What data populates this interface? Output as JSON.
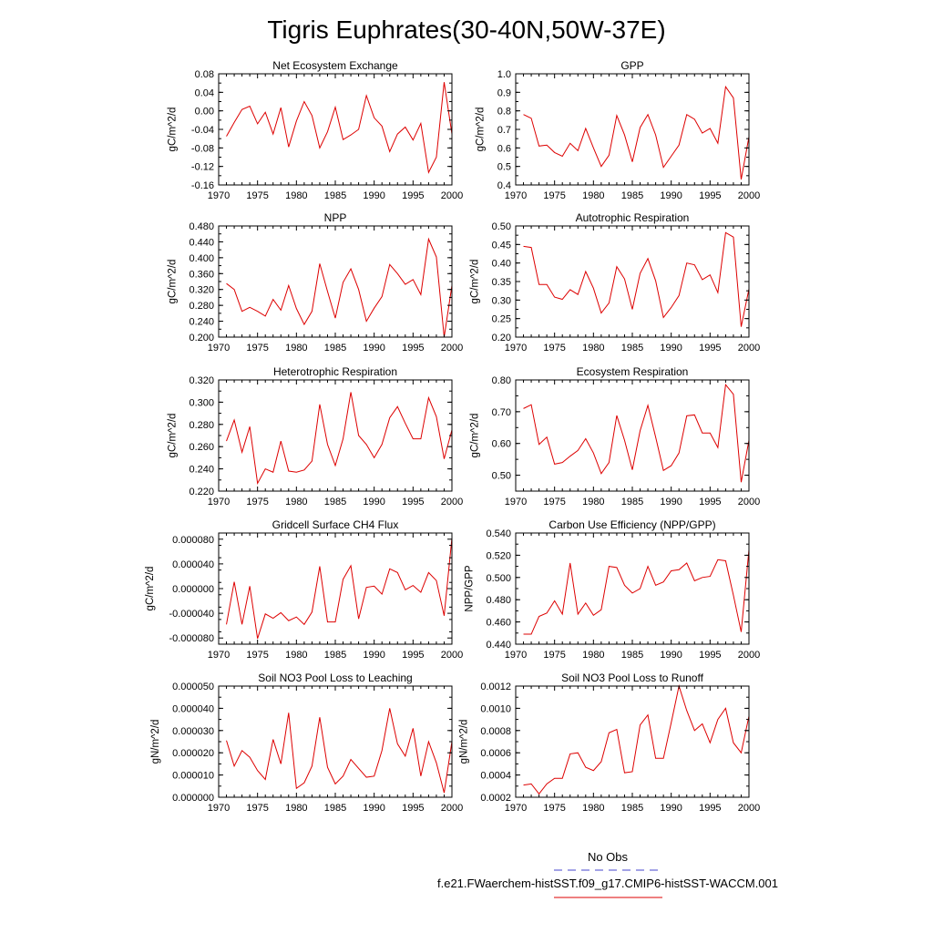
{
  "figure": {
    "title": "Tigris Euphrates(30-40N,50W-37E)"
  },
  "legend": {
    "entries": [
      {
        "label": "No Obs",
        "color": "#4444cc",
        "dash": "dashed"
      },
      {
        "label": "f.e21.FWaerchem-histSST.f09_g17.CMIP6-histSST-WACCM.001",
        "color": "#dd0000",
        "dash": "solid"
      }
    ]
  },
  "chart_data": [
    {
      "type": "line",
      "title": "Net Ecosystem Exchange",
      "xlabel": "",
      "ylabel": "gC/m^2/d",
      "xlim": [
        1970,
        2000
      ],
      "ylim": [
        -0.16,
        0.08
      ],
      "xticks": [
        "1970",
        "1975",
        "1980",
        "1985",
        "1990",
        "1995",
        "2000"
      ],
      "yticks": [
        "-0.16",
        "-0.12",
        "-0.08",
        "-0.04",
        "0.00",
        "0.04",
        "0.08"
      ],
      "series": [
        {
          "color": "#dd0000",
          "x": [
            1971,
            1972,
            1973,
            1974,
            1975,
            1976,
            1977,
            1978,
            1979,
            1980,
            1981,
            1982,
            1983,
            1984,
            1985,
            1986,
            1987,
            1988,
            1989,
            1990,
            1991,
            1992,
            1993,
            1994,
            1995,
            1996,
            1997,
            1998,
            1999,
            2000
          ],
          "y": [
            -0.055,
            -0.025,
            0.003,
            0.01,
            -0.028,
            -0.003,
            -0.05,
            0.007,
            -0.078,
            -0.022,
            0.02,
            -0.01,
            -0.08,
            -0.045,
            0.008,
            -0.062,
            -0.052,
            -0.04,
            0.033,
            -0.015,
            -0.033,
            -0.088,
            -0.05,
            -0.035,
            -0.063,
            -0.027,
            -0.133,
            -0.1,
            0.062,
            -0.05
          ]
        }
      ]
    },
    {
      "type": "line",
      "title": "GPP",
      "xlabel": "",
      "ylabel": "gC/m^2/d",
      "xlim": [
        1970,
        2000
      ],
      "ylim": [
        0.4,
        1.0
      ],
      "xticks": [
        "1970",
        "1975",
        "1980",
        "1985",
        "1990",
        "1995",
        "2000"
      ],
      "yticks": [
        "0.4",
        "0.5",
        "0.6",
        "0.7",
        "0.8",
        "0.9",
        "1.0"
      ],
      "series": [
        {
          "color": "#dd0000",
          "x": [
            1971,
            1972,
            1973,
            1974,
            1975,
            1976,
            1977,
            1978,
            1979,
            1980,
            1981,
            1982,
            1983,
            1984,
            1985,
            1986,
            1987,
            1988,
            1989,
            1990,
            1991,
            1992,
            1993,
            1994,
            1995,
            1996,
            1997,
            1998,
            1999,
            2000
          ],
          "y": [
            0.78,
            0.76,
            0.61,
            0.615,
            0.575,
            0.555,
            0.625,
            0.585,
            0.705,
            0.6,
            0.5,
            0.56,
            0.775,
            0.67,
            0.525,
            0.71,
            0.78,
            0.67,
            0.495,
            0.555,
            0.615,
            0.78,
            0.755,
            0.68,
            0.705,
            0.625,
            0.93,
            0.87,
            0.43,
            0.66
          ]
        }
      ]
    },
    {
      "type": "line",
      "title": "NPP",
      "xlabel": "",
      "ylabel": "gC/m^2/d",
      "xlim": [
        1970,
        2000
      ],
      "ylim": [
        0.2,
        0.48
      ],
      "xticks": [
        "1970",
        "1975",
        "1980",
        "1985",
        "1990",
        "1995",
        "2000"
      ],
      "yticks": [
        "0.200",
        "0.240",
        "0.280",
        "0.320",
        "0.360",
        "0.400",
        "0.440",
        "0.480"
      ],
      "series": [
        {
          "color": "#dd0000",
          "x": [
            1971,
            1972,
            1973,
            1974,
            1975,
            1976,
            1977,
            1978,
            1979,
            1980,
            1981,
            1982,
            1983,
            1984,
            1985,
            1986,
            1987,
            1988,
            1989,
            1990,
            1991,
            1992,
            1993,
            1994,
            1995,
            1996,
            1997,
            1998,
            1999,
            2000
          ],
          "y": [
            0.335,
            0.32,
            0.265,
            0.275,
            0.265,
            0.253,
            0.295,
            0.268,
            0.33,
            0.272,
            0.232,
            0.265,
            0.385,
            0.315,
            0.248,
            0.338,
            0.372,
            0.32,
            0.24,
            0.273,
            0.302,
            0.383,
            0.36,
            0.333,
            0.345,
            0.307,
            0.447,
            0.402,
            0.2,
            0.33
          ]
        }
      ]
    },
    {
      "type": "line",
      "title": "Autotrophic Respiration",
      "xlabel": "",
      "ylabel": "gC/m^2/d",
      "xlim": [
        1970,
        2000
      ],
      "ylim": [
        0.2,
        0.5
      ],
      "xticks": [
        "1970",
        "1975",
        "1980",
        "1985",
        "1990",
        "1995",
        "2000"
      ],
      "yticks": [
        "0.20",
        "0.25",
        "0.30",
        "0.35",
        "0.40",
        "0.45",
        "0.50"
      ],
      "series": [
        {
          "color": "#dd0000",
          "x": [
            1971,
            1972,
            1973,
            1974,
            1975,
            1976,
            1977,
            1978,
            1979,
            1980,
            1981,
            1982,
            1983,
            1984,
            1985,
            1986,
            1987,
            1988,
            1989,
            1990,
            1991,
            1992,
            1993,
            1994,
            1995,
            1996,
            1997,
            1998,
            1999,
            2000
          ],
          "y": [
            0.445,
            0.442,
            0.342,
            0.342,
            0.308,
            0.302,
            0.328,
            0.315,
            0.377,
            0.332,
            0.265,
            0.292,
            0.39,
            0.357,
            0.275,
            0.372,
            0.412,
            0.352,
            0.253,
            0.28,
            0.312,
            0.4,
            0.395,
            0.355,
            0.368,
            0.32,
            0.482,
            0.47,
            0.228,
            0.33
          ]
        }
      ]
    },
    {
      "type": "line",
      "title": "Heterotrophic Respiration",
      "xlabel": "",
      "ylabel": "gC/m^2/d",
      "xlim": [
        1970,
        2000
      ],
      "ylim": [
        0.22,
        0.32
      ],
      "xticks": [
        "1970",
        "1975",
        "1980",
        "1985",
        "1990",
        "1995",
        "2000"
      ],
      "yticks": [
        "0.220",
        "0.240",
        "0.260",
        "0.280",
        "0.300",
        "0.320"
      ],
      "series": [
        {
          "color": "#dd0000",
          "x": [
            1971,
            1972,
            1973,
            1974,
            1975,
            1976,
            1977,
            1978,
            1979,
            1980,
            1981,
            1982,
            1983,
            1984,
            1985,
            1986,
            1987,
            1988,
            1989,
            1990,
            1991,
            1992,
            1993,
            1994,
            1995,
            1996,
            1997,
            1998,
            1999,
            2000
          ],
          "y": [
            0.265,
            0.284,
            0.255,
            0.278,
            0.227,
            0.24,
            0.237,
            0.265,
            0.238,
            0.237,
            0.239,
            0.247,
            0.298,
            0.262,
            0.243,
            0.267,
            0.309,
            0.27,
            0.262,
            0.25,
            0.262,
            0.286,
            0.296,
            0.281,
            0.267,
            0.267,
            0.304,
            0.287,
            0.249,
            0.275
          ]
        }
      ]
    },
    {
      "type": "line",
      "title": "Ecosystem Respiration",
      "xlabel": "",
      "ylabel": "gC/m^2/d",
      "xlim": [
        1970,
        2000
      ],
      "ylim": [
        0.45,
        0.8
      ],
      "xticks": [
        "1970",
        "1975",
        "1980",
        "1985",
        "1990",
        "1995",
        "2000"
      ],
      "yticks": [
        "0.50",
        "0.60",
        "0.70",
        "0.80"
      ],
      "series": [
        {
          "color": "#dd0000",
          "x": [
            1971,
            1972,
            1973,
            1974,
            1975,
            1976,
            1977,
            1978,
            1979,
            1980,
            1981,
            1982,
            1983,
            1984,
            1985,
            1986,
            1987,
            1988,
            1989,
            1990,
            1991,
            1992,
            1993,
            1994,
            1995,
            1996,
            1997,
            1998,
            1999,
            2000
          ],
          "y": [
            0.71,
            0.722,
            0.597,
            0.62,
            0.535,
            0.54,
            0.56,
            0.578,
            0.615,
            0.57,
            0.505,
            0.54,
            0.688,
            0.61,
            0.517,
            0.64,
            0.72,
            0.62,
            0.515,
            0.53,
            0.57,
            0.687,
            0.69,
            0.633,
            0.633,
            0.587,
            0.785,
            0.755,
            0.478,
            0.61
          ]
        }
      ]
    },
    {
      "type": "line",
      "title": "Gridcell Surface CH4 Flux",
      "xlabel": "",
      "ylabel": "gC/m^2/d",
      "xlim": [
        1970,
        2000
      ],
      "ylim": [
        -9e-05,
        9e-05
      ],
      "xticks": [
        "1970",
        "1975",
        "1980",
        "1985",
        "1990",
        "1995",
        "2000"
      ],
      "yticks": [
        "-0.000080",
        "-0.000040",
        "0.000000",
        "0.000040",
        "0.000080"
      ],
      "series": [
        {
          "color": "#dd0000",
          "x": [
            1971,
            1972,
            1973,
            1974,
            1975,
            1976,
            1977,
            1978,
            1979,
            1980,
            1981,
            1982,
            1983,
            1984,
            1985,
            1986,
            1987,
            1988,
            1989,
            1990,
            1991,
            1992,
            1993,
            1994,
            1995,
            1996,
            1997,
            1998,
            1999,
            2000
          ],
          "y": [
            -5.8e-05,
            1.1e-05,
            -5.8e-05,
            4e-06,
            -8.1e-05,
            -4.1e-05,
            -4.8e-05,
            -3.9e-05,
            -5.2e-05,
            -4.6e-05,
            -5.8e-05,
            -3.8e-05,
            3.6e-05,
            -5.4e-05,
            -5.4e-05,
            1.5e-05,
            3.7e-05,
            -4.9e-05,
            2e-06,
            4e-06,
            -9e-06,
            3.2e-05,
            2.6e-05,
            -2e-06,
            5e-06,
            -6e-06,
            2.6e-05,
            1.3e-05,
            -4.4e-05,
            8.2e-05
          ]
        }
      ]
    },
    {
      "type": "line",
      "title": "Carbon Use Efficiency (NPP/GPP)",
      "xlabel": "",
      "ylabel": "NPP/GPP",
      "xlim": [
        1970,
        2000
      ],
      "ylim": [
        0.44,
        0.54
      ],
      "xticks": [
        "1970",
        "1975",
        "1980",
        "1985",
        "1990",
        "1995",
        "2000"
      ],
      "yticks": [
        "0.440",
        "0.460",
        "0.480",
        "0.500",
        "0.520",
        "0.540"
      ],
      "series": [
        {
          "color": "#dd0000",
          "x": [
            1971,
            1972,
            1973,
            1974,
            1975,
            1976,
            1977,
            1978,
            1979,
            1980,
            1981,
            1982,
            1983,
            1984,
            1985,
            1986,
            1987,
            1988,
            1989,
            1990,
            1991,
            1992,
            1993,
            1994,
            1995,
            1996,
            1997,
            1998,
            1999,
            2000
          ],
          "y": [
            0.449,
            0.449,
            0.465,
            0.468,
            0.479,
            0.467,
            0.513,
            0.467,
            0.477,
            0.466,
            0.471,
            0.51,
            0.509,
            0.493,
            0.486,
            0.49,
            0.51,
            0.493,
            0.496,
            0.506,
            0.507,
            0.513,
            0.497,
            0.5,
            0.501,
            0.516,
            0.515,
            0.484,
            0.451,
            0.525
          ]
        }
      ]
    },
    {
      "type": "line",
      "title": "Soil NO3 Pool Loss to Leaching",
      "xlabel": "",
      "ylabel": "gN/m^2/d",
      "xlim": [
        1970,
        2000
      ],
      "ylim": [
        0.0,
        5e-05
      ],
      "xticks": [
        "1970",
        "1975",
        "1980",
        "1985",
        "1990",
        "1995",
        "2000"
      ],
      "yticks": [
        "0.000000",
        "0.000010",
        "0.000020",
        "0.000030",
        "0.000040",
        "0.000050"
      ],
      "series": [
        {
          "color": "#dd0000",
          "x": [
            1971,
            1972,
            1973,
            1974,
            1975,
            1976,
            1977,
            1978,
            1979,
            1980,
            1981,
            1982,
            1983,
            1984,
            1985,
            1986,
            1987,
            1988,
            1989,
            1990,
            1991,
            1992,
            1993,
            1994,
            1995,
            1996,
            1997,
            1998,
            1999,
            2000
          ],
          "y": [
            2.55e-05,
            1.4e-05,
            2.1e-05,
            1.8e-05,
            1.2e-05,
            8e-06,
            2.6e-05,
            1.5e-05,
            3.8e-05,
            4e-06,
            6.5e-06,
            1.4e-05,
            3.6e-05,
            1.35e-05,
            6e-06,
            9.5e-06,
            1.7e-05,
            1.3e-05,
            9e-06,
            9.5e-06,
            2.1e-05,
            4e-05,
            2.4e-05,
            1.85e-05,
            3.1e-05,
            9.5e-06,
            2.5e-05,
            1.55e-05,
            2e-06,
            2.5e-05
          ]
        }
      ]
    },
    {
      "type": "line",
      "title": "Soil NO3 Pool Loss to Runoff",
      "xlabel": "",
      "ylabel": "gN/m^2/d",
      "xlim": [
        1970,
        2000
      ],
      "ylim": [
        0.0002,
        0.0012
      ],
      "xticks": [
        "1970",
        "1975",
        "1980",
        "1985",
        "1990",
        "1995",
        "2000"
      ],
      "yticks": [
        "0.0002",
        "0.0004",
        "0.0006",
        "0.0008",
        "0.0010",
        "0.0012"
      ],
      "series": [
        {
          "color": "#dd0000",
          "x": [
            1971,
            1972,
            1973,
            1974,
            1975,
            1976,
            1977,
            1978,
            1979,
            1980,
            1981,
            1982,
            1983,
            1984,
            1985,
            1986,
            1987,
            1988,
            1989,
            1990,
            1991,
            1992,
            1993,
            1994,
            1995,
            1996,
            1997,
            1998,
            1999,
            2000
          ],
          "y": [
            0.00031,
            0.00032,
            0.00023,
            0.00032,
            0.00037,
            0.00037,
            0.00059,
            0.0006,
            0.00047,
            0.00044,
            0.00052,
            0.00078,
            0.00081,
            0.00042,
            0.00043,
            0.00085,
            0.00094,
            0.00055,
            0.00055,
            0.00087,
            0.0012,
            0.00098,
            0.0008,
            0.00086,
            0.00069,
            0.0009,
            0.001,
            0.00069,
            0.0006,
            0.00093
          ]
        }
      ]
    }
  ]
}
